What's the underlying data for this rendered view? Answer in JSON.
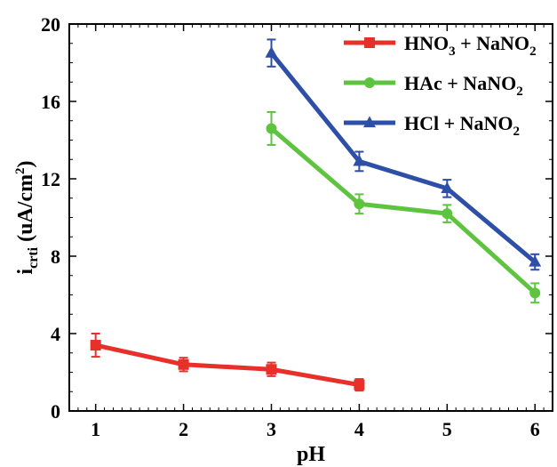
{
  "chart_data": {
    "type": "line",
    "title": "",
    "xlabel": "pH",
    "ylabel": {
      "main": "i",
      "sub": "crti",
      "unit_pre": " (uA/cm",
      "unit_sup": "2",
      "unit_post": ")"
    },
    "xlim": [
      0.7,
      6.2
    ],
    "ylim": [
      0,
      20
    ],
    "x_ticks": [
      1,
      2,
      3,
      4,
      5,
      6
    ],
    "y_ticks": [
      0,
      4,
      8,
      12,
      16,
      20
    ],
    "grid": false,
    "legend_position": "top-right",
    "series": [
      {
        "name": "HNO3 + NaNO2",
        "legend_parts": [
          {
            "t": "HNO",
            "s": "n"
          },
          {
            "t": "3",
            "s": "sub"
          },
          {
            "t": " + NaNO",
            "s": "n"
          },
          {
            "t": "2",
            "s": "sub"
          }
        ],
        "color": "#e8302a",
        "marker": "square",
        "x": [
          1,
          2,
          3,
          4
        ],
        "y": [
          3.4,
          2.4,
          2.15,
          1.35
        ],
        "error": [
          0.6,
          0.35,
          0.35,
          0.3
        ]
      },
      {
        "name": "HAc + NaNO2",
        "legend_parts": [
          {
            "t": "HAc + NaNO",
            "s": "n"
          },
          {
            "t": "2",
            "s": "sub"
          }
        ],
        "color": "#5ec43f",
        "marker": "circle",
        "x": [
          3,
          4,
          5,
          6
        ],
        "y": [
          14.6,
          10.7,
          10.2,
          6.1
        ],
        "error": [
          0.85,
          0.5,
          0.45,
          0.5
        ]
      },
      {
        "name": "HCl + NaNO2",
        "legend_parts": [
          {
            "t": "HCl + NaNO",
            "s": "n"
          },
          {
            "t": "2",
            "s": "sub"
          }
        ],
        "color": "#2e4fa8",
        "marker": "triangle",
        "x": [
          3,
          4,
          5,
          6
        ],
        "y": [
          18.5,
          12.9,
          11.5,
          7.7
        ],
        "error": [
          0.7,
          0.5,
          0.45,
          0.4
        ]
      }
    ]
  }
}
